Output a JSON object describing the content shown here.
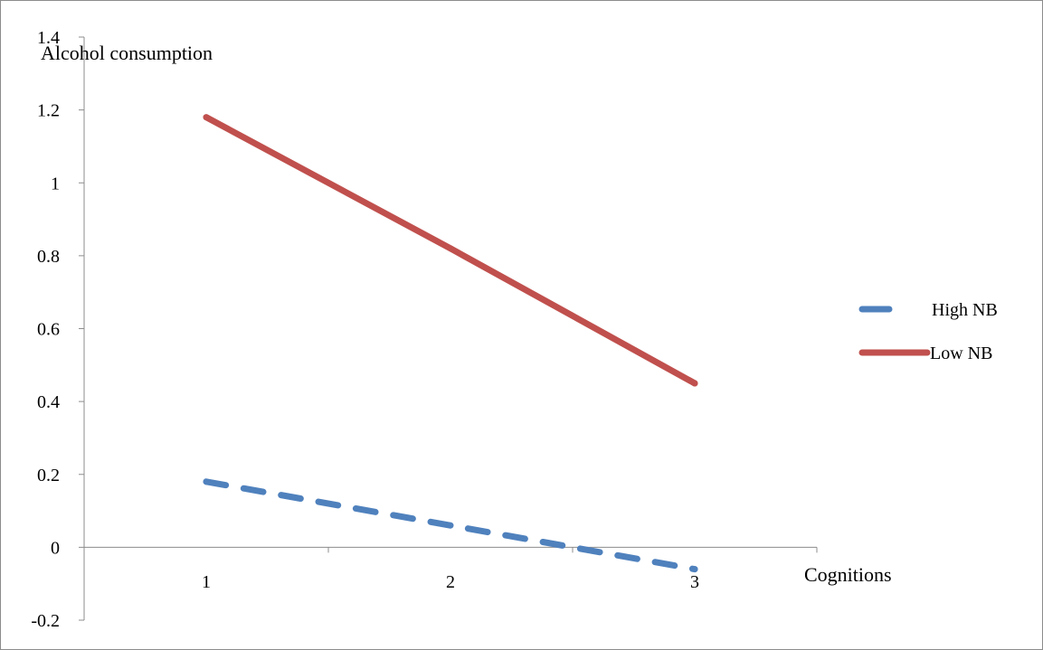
{
  "chart_data": {
    "type": "line",
    "xlabel": "Cognitions",
    "ylabel": "Alcohol consumption",
    "categories": [
      "1",
      "2",
      "3"
    ],
    "ylim": [
      -0.2,
      1.4
    ],
    "yticks": [
      "-0.2",
      "0",
      "0.2",
      "0.4",
      "0.6",
      "0.8",
      "1",
      "1.2",
      "1.4"
    ],
    "grid": false,
    "legend_position": "right",
    "series": [
      {
        "name": "High NB",
        "values": [
          0.18,
          0.06,
          -0.06
        ],
        "color": "#4f81bd",
        "style": "dashed"
      },
      {
        "name": "Low NB",
        "values": [
          1.18,
          0.82,
          0.45
        ],
        "color": "#c0504d",
        "style": "solid"
      }
    ]
  }
}
